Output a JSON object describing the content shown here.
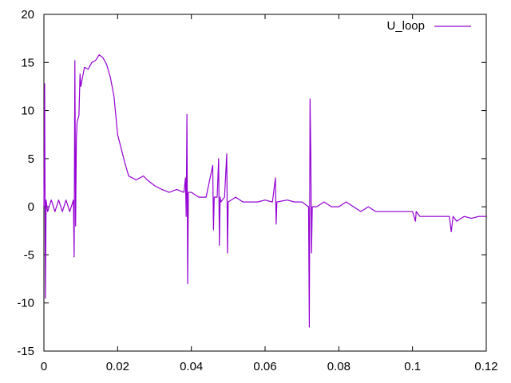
{
  "chart_data": {
    "type": "line",
    "title": "",
    "xlabel": "",
    "ylabel": "",
    "xlim": [
      0,
      0.12
    ],
    "ylim": [
      -15,
      20
    ],
    "x_ticks": [
      "0",
      "0.02",
      "0.04",
      "0.06",
      "0.08",
      "0.1",
      "0.12"
    ],
    "x_tick_values": [
      0,
      0.02,
      0.04,
      0.06,
      0.08,
      0.1,
      0.12
    ],
    "y_ticks": [
      "-15",
      "-10",
      "-5",
      "0",
      "5",
      "10",
      "15",
      "20"
    ],
    "y_tick_values": [
      -15,
      -10,
      -5,
      0,
      5,
      10,
      15,
      20
    ],
    "grid": false,
    "legend_position": "top-right",
    "series": [
      {
        "name": "U_loop",
        "color": "#9400d3",
        "points": [
          [
            0.0,
            0.0
          ],
          [
            0.0002,
            12.8
          ],
          [
            0.0004,
            -9.5
          ],
          [
            0.0006,
            0.7
          ],
          [
            0.001,
            -0.5
          ],
          [
            0.002,
            0.7
          ],
          [
            0.003,
            -0.5
          ],
          [
            0.004,
            0.7
          ],
          [
            0.005,
            -0.5
          ],
          [
            0.006,
            0.7
          ],
          [
            0.007,
            -0.5
          ],
          [
            0.008,
            0.7
          ],
          [
            0.0082,
            -5.2
          ],
          [
            0.0084,
            15.2
          ],
          [
            0.0086,
            -2.0
          ],
          [
            0.0088,
            7.0
          ],
          [
            0.009,
            8.8
          ],
          [
            0.0095,
            9.5
          ],
          [
            0.0098,
            13.8
          ],
          [
            0.01,
            12.5
          ],
          [
            0.011,
            14.5
          ],
          [
            0.012,
            14.3
          ],
          [
            0.013,
            15.0
          ],
          [
            0.014,
            15.2
          ],
          [
            0.015,
            15.8
          ],
          [
            0.016,
            15.5
          ],
          [
            0.017,
            14.8
          ],
          [
            0.018,
            13.5
          ],
          [
            0.019,
            11.5
          ],
          [
            0.02,
            7.5
          ],
          [
            0.021,
            6.0
          ],
          [
            0.022,
            4.5
          ],
          [
            0.023,
            3.2
          ],
          [
            0.024,
            3.0
          ],
          [
            0.025,
            2.8
          ],
          [
            0.026,
            3.0
          ],
          [
            0.027,
            3.2
          ],
          [
            0.028,
            2.8
          ],
          [
            0.029,
            2.5
          ],
          [
            0.03,
            2.2
          ],
          [
            0.032,
            1.8
          ],
          [
            0.034,
            1.5
          ],
          [
            0.036,
            1.8
          ],
          [
            0.038,
            1.5
          ],
          [
            0.0384,
            3.0
          ],
          [
            0.0386,
            -1.0
          ],
          [
            0.0388,
            9.6
          ],
          [
            0.039,
            -8.0
          ],
          [
            0.0392,
            1.5
          ],
          [
            0.04,
            1.5
          ],
          [
            0.042,
            1.0
          ],
          [
            0.044,
            1.0
          ],
          [
            0.0458,
            4.3
          ],
          [
            0.046,
            -2.4
          ],
          [
            0.0462,
            1.0
          ],
          [
            0.047,
            1.0
          ],
          [
            0.0474,
            5.0
          ],
          [
            0.0476,
            -4.0
          ],
          [
            0.0478,
            1.0
          ],
          [
            0.048,
            0.5
          ],
          [
            0.049,
            1.0
          ],
          [
            0.0496,
            5.5
          ],
          [
            0.0498,
            -4.8
          ],
          [
            0.05,
            0.5
          ],
          [
            0.052,
            1.0
          ],
          [
            0.054,
            0.5
          ],
          [
            0.056,
            0.5
          ],
          [
            0.058,
            0.5
          ],
          [
            0.06,
            0.7
          ],
          [
            0.062,
            0.5
          ],
          [
            0.0628,
            3.0
          ],
          [
            0.063,
            -1.8
          ],
          [
            0.0632,
            0.5
          ],
          [
            0.066,
            0.7
          ],
          [
            0.068,
            0.5
          ],
          [
            0.07,
            0.5
          ],
          [
            0.0718,
            0.0
          ],
          [
            0.072,
            -12.5
          ],
          [
            0.0722,
            11.2
          ],
          [
            0.0724,
            5.5
          ],
          [
            0.0726,
            -4.8
          ],
          [
            0.0728,
            0.0
          ],
          [
            0.074,
            0.0
          ],
          [
            0.076,
            0.5
          ],
          [
            0.078,
            0.0
          ],
          [
            0.08,
            0.0
          ],
          [
            0.082,
            0.5
          ],
          [
            0.084,
            0.0
          ],
          [
            0.086,
            -0.5
          ],
          [
            0.088,
            0.0
          ],
          [
            0.09,
            -0.5
          ],
          [
            0.092,
            -0.5
          ],
          [
            0.094,
            -0.5
          ],
          [
            0.096,
            -0.5
          ],
          [
            0.098,
            -0.5
          ],
          [
            0.1,
            -0.5
          ],
          [
            0.1008,
            -1.5
          ],
          [
            0.101,
            -0.5
          ],
          [
            0.102,
            -1.0
          ],
          [
            0.104,
            -1.0
          ],
          [
            0.106,
            -1.0
          ],
          [
            0.108,
            -1.0
          ],
          [
            0.11,
            -1.0
          ],
          [
            0.1105,
            -2.6
          ],
          [
            0.111,
            -1.0
          ],
          [
            0.112,
            -1.5
          ],
          [
            0.114,
            -1.0
          ],
          [
            0.116,
            -1.2
          ],
          [
            0.118,
            -1.0
          ],
          [
            0.12,
            -1.0
          ]
        ]
      }
    ]
  }
}
